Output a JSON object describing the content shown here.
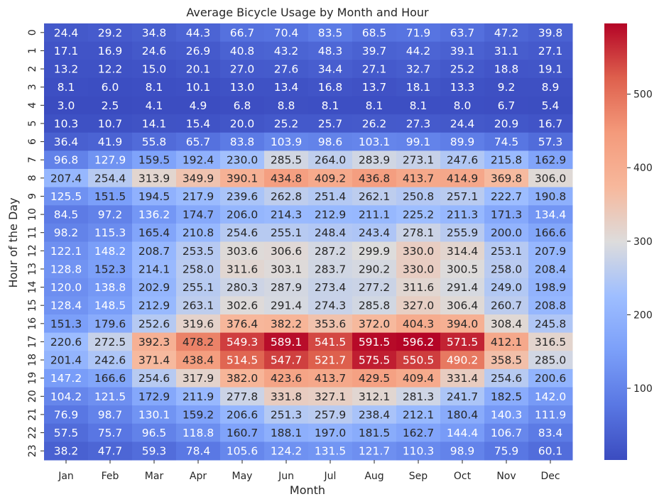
{
  "chart_data": {
    "type": "heatmap",
    "title": "Average Bicycle Usage by Month and Hour",
    "xlabel": "Month",
    "ylabel": "Hour of the Day",
    "colormap": "coolwarm",
    "color_range": [
      2.5,
      596.2
    ],
    "colorbar_ticks": [
      100,
      200,
      300,
      400,
      500
    ],
    "x_categories": [
      "Jan",
      "Feb",
      "Mar",
      "Apr",
      "May",
      "Jun",
      "Jul",
      "Aug",
      "Sep",
      "Oct",
      "Nov",
      "Dec"
    ],
    "y_categories": [
      "0",
      "1",
      "2",
      "3",
      "4",
      "5",
      "6",
      "7",
      "8",
      "9",
      "10",
      "11",
      "12",
      "13",
      "14",
      "15",
      "16",
      "17",
      "18",
      "19",
      "20",
      "21",
      "22",
      "23"
    ],
    "values": [
      [
        24.4,
        29.2,
        34.8,
        44.3,
        66.7,
        70.4,
        83.5,
        68.5,
        71.9,
        63.7,
        47.2,
        39.8
      ],
      [
        17.1,
        16.9,
        24.6,
        26.9,
        40.8,
        43.2,
        48.3,
        39.7,
        44.2,
        39.1,
        31.1,
        27.1
      ],
      [
        13.2,
        12.2,
        15.0,
        20.1,
        27.0,
        27.6,
        34.4,
        27.1,
        32.7,
        25.2,
        18.8,
        19.1
      ],
      [
        8.1,
        6.0,
        8.1,
        10.1,
        13.0,
        13.4,
        16.8,
        13.7,
        18.1,
        13.3,
        9.2,
        8.9
      ],
      [
        3.0,
        2.5,
        4.1,
        4.9,
        6.8,
        8.8,
        8.1,
        8.1,
        8.1,
        8.0,
        6.7,
        5.4
      ],
      [
        10.3,
        10.7,
        14.1,
        15.4,
        20.0,
        25.2,
        25.7,
        26.2,
        27.3,
        24.4,
        20.9,
        16.7
      ],
      [
        36.4,
        41.9,
        55.8,
        65.7,
        83.8,
        103.9,
        98.6,
        103.1,
        99.1,
        89.9,
        74.5,
        57.3
      ],
      [
        96.8,
        127.9,
        159.5,
        192.4,
        230.0,
        285.5,
        264.0,
        283.9,
        273.1,
        247.6,
        215.8,
        162.9
      ],
      [
        207.4,
        254.4,
        313.9,
        349.9,
        390.1,
        434.8,
        409.2,
        436.8,
        413.7,
        414.9,
        369.8,
        306.0
      ],
      [
        125.5,
        151.5,
        194.5,
        217.9,
        239.6,
        262.8,
        251.4,
        262.1,
        250.8,
        257.1,
        222.7,
        190.8
      ],
      [
        84.5,
        97.2,
        136.2,
        174.7,
        206.0,
        214.3,
        212.9,
        211.1,
        225.2,
        211.3,
        171.3,
        134.4
      ],
      [
        98.2,
        115.3,
        165.4,
        210.8,
        254.6,
        255.1,
        248.4,
        243.4,
        278.1,
        255.9,
        200.0,
        166.6
      ],
      [
        122.1,
        148.2,
        208.7,
        253.5,
        303.6,
        306.6,
        287.2,
        299.9,
        330.0,
        314.4,
        253.1,
        207.9
      ],
      [
        128.8,
        152.3,
        214.1,
        258.0,
        311.6,
        303.1,
        283.7,
        290.2,
        330.0,
        300.5,
        258.0,
        208.4
      ],
      [
        120.0,
        138.8,
        202.9,
        255.1,
        280.3,
        287.9,
        273.4,
        277.2,
        311.6,
        291.4,
        249.0,
        198.9
      ],
      [
        128.4,
        148.5,
        212.9,
        263.1,
        302.6,
        291.4,
        274.3,
        285.8,
        327.0,
        306.4,
        260.7,
        208.8
      ],
      [
        151.3,
        179.6,
        252.6,
        319.6,
        376.4,
        382.2,
        353.6,
        372.0,
        404.3,
        394.0,
        308.4,
        245.8
      ],
      [
        220.6,
        272.5,
        392.3,
        478.2,
        549.3,
        589.1,
        541.5,
        591.5,
        596.2,
        571.5,
        412.1,
        316.5
      ],
      [
        201.4,
        242.6,
        371.4,
        438.4,
        514.5,
        547.7,
        521.7,
        575.5,
        550.5,
        490.2,
        358.5,
        285.0
      ],
      [
        147.2,
        166.6,
        254.6,
        317.9,
        382.0,
        423.6,
        413.7,
        429.5,
        409.4,
        331.4,
        254.6,
        200.6
      ],
      [
        104.2,
        121.5,
        172.9,
        211.9,
        277.8,
        331.8,
        327.1,
        312.1,
        281.3,
        241.7,
        182.5,
        142.0
      ],
      [
        76.9,
        98.7,
        130.1,
        159.2,
        206.6,
        251.3,
        257.9,
        238.4,
        212.1,
        180.4,
        140.3,
        111.9
      ],
      [
        57.5,
        75.7,
        96.5,
        118.8,
        160.7,
        188.1,
        197.0,
        181.5,
        162.7,
        144.4,
        106.7,
        83.4
      ],
      [
        38.2,
        47.7,
        59.3,
        78.4,
        105.6,
        124.2,
        131.5,
        121.7,
        110.3,
        98.9,
        75.9,
        60.1
      ]
    ]
  }
}
